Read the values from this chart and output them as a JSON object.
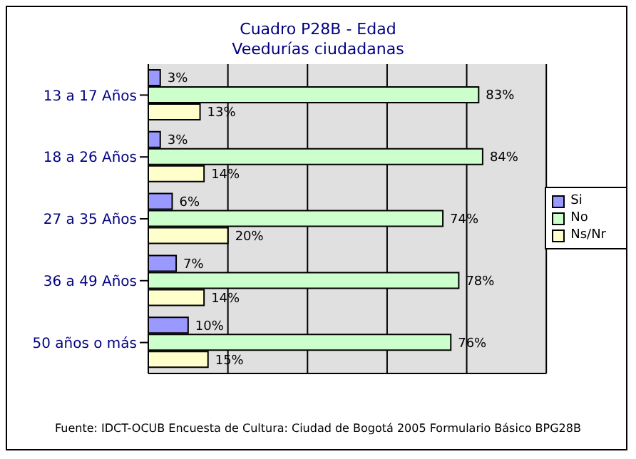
{
  "chart_data": {
    "type": "bar",
    "orientation": "horizontal",
    "title": "Cuadro P28B - Edad",
    "subtitle": "Veedurías ciudadanas",
    "categories": [
      "13 a 17 Años",
      "18 a 26 Años",
      "27 a 35 Años",
      "36 a 49 Años",
      "50 años o más"
    ],
    "series": [
      {
        "name": "Si",
        "color": "#9999ff",
        "values": [
          3,
          3,
          6,
          7,
          10
        ],
        "value_labels": [
          "3%",
          "3%",
          "6%",
          "7%",
          "10%"
        ]
      },
      {
        "name": "No",
        "color": "#ccffcc",
        "values": [
          83,
          84,
          74,
          78,
          76
        ],
        "value_labels": [
          "83%",
          "84%",
          "74%",
          "78%",
          "76%"
        ]
      },
      {
        "name": "Ns/Nr",
        "color": "#ffffcc",
        "values": [
          13,
          14,
          20,
          14,
          15
        ],
        "value_labels": [
          "13%",
          "14%",
          "20%",
          "14%",
          "15%"
        ]
      }
    ],
    "xlim": [
      0,
      100
    ],
    "xticks": [
      {
        "value": 0,
        "label": null
      },
      {
        "value": 20,
        "label": null
      },
      {
        "value": 40,
        "label": null
      },
      {
        "value": 60,
        "label": null
      },
      {
        "value": 80,
        "label": null
      },
      {
        "value": 100,
        "label": null
      }
    ],
    "tick_labels": "y",
    "grid": "x",
    "legend": "right",
    "annotations": [
      "Fuente: IDCT-OCUB Encuesta de Cultura: Ciudad de Bogotá 2005 Formulario Básico BPG28B"
    ]
  }
}
